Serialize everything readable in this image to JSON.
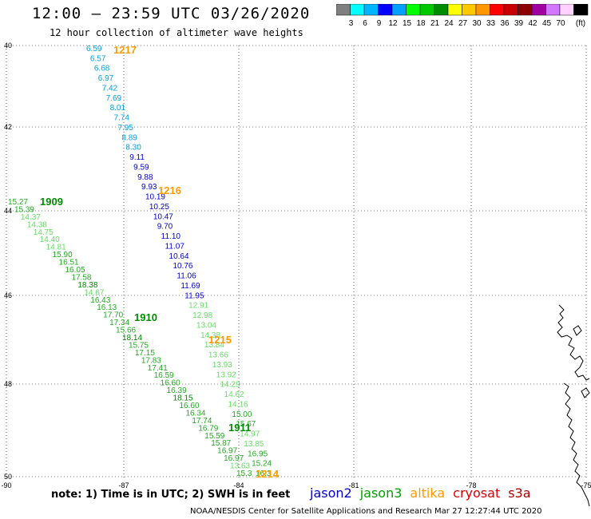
{
  "header": {
    "title": "12:00 — 23:59 UTC 03/26/2020",
    "subtitle": "12 hour collection of altimeter wave heights"
  },
  "colorbar": {
    "colors": [
      "#7f7f7f",
      "#00ffff",
      "#00b4ff",
      "#0000ff",
      "#00a0ff",
      "#00ff00",
      "#00c800",
      "#008c00",
      "#ffff00",
      "#ffc800",
      "#ff9600",
      "#ff0000",
      "#c80000",
      "#8c0000",
      "#a000a0",
      "#d278ff",
      "#ffd2ff",
      "#000000"
    ],
    "labels": [
      "3",
      "6",
      "9",
      "12",
      "15",
      "18",
      "21",
      "24",
      "27",
      "30",
      "33",
      "36",
      "39",
      "42",
      "45",
      "70"
    ],
    "unit": "(ft)"
  },
  "axes": {
    "lat_labels": [
      "40",
      "42",
      "44",
      "46",
      "48",
      "50"
    ],
    "lon_labels": [
      "-90",
      "-87",
      "-84",
      "-81",
      "-78",
      "-75"
    ]
  },
  "satellites": [
    {
      "name": "jason2",
      "color": "#0000cc"
    },
    {
      "name": "jason3",
      "color": "#00a000"
    },
    {
      "name": "altika",
      "color": "#ff9900"
    },
    {
      "name": "cryosat",
      "color": "#dd0000"
    },
    {
      "name": "s3a",
      "color": "#aa0000"
    }
  ],
  "time_labels": [
    {
      "text": "1217",
      "color": "#ff9900"
    },
    {
      "text": "1216",
      "color": "#ff9900"
    },
    {
      "text": "1215",
      "color": "#ff9900"
    },
    {
      "text": "1214",
      "color": "#ff9900"
    },
    {
      "text": "1909",
      "color": "#008c00"
    },
    {
      "text": "1910",
      "color": "#008c00"
    },
    {
      "text": "1911",
      "color": "#008c00"
    }
  ],
  "track_a": [
    "6.59",
    "6.57",
    "6.68",
    "6.97",
    "7.42",
    "7.69",
    "8.01",
    "7.74",
    "7.95",
    "8.89",
    "8.30",
    "9.11",
    "9.59",
    "9.88",
    "9.93",
    "10.19",
    "10.25",
    "10.47",
    "9.70",
    "11.10",
    "11.07",
    "10.64",
    "10.76",
    "11.06",
    "11.69",
    "11.95",
    "12.91",
    "12.98",
    "13.04",
    "14.38",
    "13.84",
    "13.66",
    "13.93",
    "13.92",
    "14.29",
    "14.62",
    "14.16",
    "15.00",
    "15.67",
    "14.97",
    "13.85",
    "16.95",
    "15.24",
    "16.3"
  ],
  "track_b": [
    "15.27",
    "15.39",
    "14.37",
    "14.38",
    "14.75",
    "14.40",
    "14.81",
    "15.90",
    "16.51",
    "16.05",
    "17.58",
    "18.38",
    "14.67",
    "16.43",
    "16.13",
    "17.70",
    "17.34",
    "15.66",
    "18.14",
    "15.75",
    "17.15",
    "17.83",
    "17.41",
    "16.59",
    "16.60",
    "16.39",
    "18.15",
    "16.60",
    "16.34",
    "17.74",
    "16.79",
    "15.59",
    "15.87",
    "16.97",
    "16.97",
    "13.63",
    "15.3"
  ],
  "note": "note:  1) Time is in UTC;  2) SWH is in feet",
  "credit": "NOAA/NESDIS Center for Satellite Applications and Research    Mar 27 12:27:44 UTC 2020"
}
